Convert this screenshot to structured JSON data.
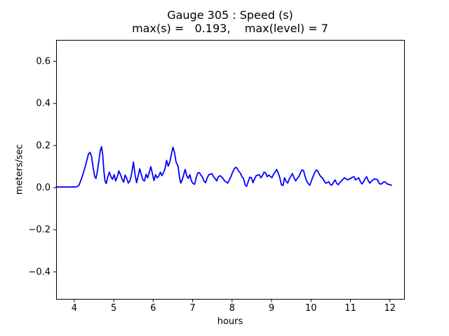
{
  "chart_data": {
    "type": "line",
    "title": "Gauge 305 : Speed (s)",
    "subtitle": "max(s) =   0.193,    max(level) = 7",
    "xlabel": "hours",
    "ylabel": "meters/sec",
    "xlim": [
      3.54,
      12.36
    ],
    "ylim": [
      -0.53,
      0.7
    ],
    "xticks": [
      4,
      5,
      6,
      7,
      8,
      9,
      10,
      11,
      12
    ],
    "yticks": [
      -0.4,
      -0.2,
      0.0,
      0.2,
      0.4,
      0.6
    ],
    "grid": false,
    "legend": null,
    "line_color": "#0000ff",
    "line_width": 1.8,
    "axis_color": "#000000",
    "background_color": "#ffffff",
    "series_name": "speed",
    "points": [
      [
        3.54,
        0.001
      ],
      [
        3.6,
        0.002
      ],
      [
        3.66,
        0.001
      ],
      [
        3.72,
        0.002
      ],
      [
        3.78,
        0.001
      ],
      [
        3.84,
        0.002
      ],
      [
        3.9,
        0.001
      ],
      [
        3.96,
        0.002
      ],
      [
        4.02,
        0.001
      ],
      [
        4.08,
        0.004
      ],
      [
        4.12,
        0.01
      ],
      [
        4.16,
        0.03
      ],
      [
        4.2,
        0.05
      ],
      [
        4.24,
        0.075
      ],
      [
        4.28,
        0.1
      ],
      [
        4.32,
        0.13
      ],
      [
        4.36,
        0.158
      ],
      [
        4.4,
        0.166
      ],
      [
        4.44,
        0.145
      ],
      [
        4.48,
        0.09
      ],
      [
        4.52,
        0.05
      ],
      [
        4.55,
        0.042
      ],
      [
        4.58,
        0.07
      ],
      [
        4.62,
        0.12
      ],
      [
        4.66,
        0.175
      ],
      [
        4.69,
        0.193
      ],
      [
        4.72,
        0.155
      ],
      [
        4.75,
        0.08
      ],
      [
        4.78,
        0.03
      ],
      [
        4.81,
        0.018
      ],
      [
        4.85,
        0.05
      ],
      [
        4.89,
        0.072
      ],
      [
        4.93,
        0.05
      ],
      [
        4.97,
        0.038
      ],
      [
        5.01,
        0.06
      ],
      [
        5.05,
        0.03
      ],
      [
        5.09,
        0.05
      ],
      [
        5.13,
        0.078
      ],
      [
        5.17,
        0.06
      ],
      [
        5.21,
        0.04
      ],
      [
        5.25,
        0.024
      ],
      [
        5.29,
        0.058
      ],
      [
        5.33,
        0.042
      ],
      [
        5.37,
        0.02
      ],
      [
        5.41,
        0.03
      ],
      [
        5.45,
        0.06
      ],
      [
        5.5,
        0.12
      ],
      [
        5.54,
        0.06
      ],
      [
        5.58,
        0.022
      ],
      [
        5.62,
        0.055
      ],
      [
        5.66,
        0.088
      ],
      [
        5.7,
        0.06
      ],
      [
        5.74,
        0.035
      ],
      [
        5.78,
        0.03
      ],
      [
        5.82,
        0.062
      ],
      [
        5.86,
        0.045
      ],
      [
        5.9,
        0.07
      ],
      [
        5.94,
        0.098
      ],
      [
        5.98,
        0.065
      ],
      [
        6.02,
        0.032
      ],
      [
        6.06,
        0.06
      ],
      [
        6.1,
        0.045
      ],
      [
        6.14,
        0.052
      ],
      [
        6.18,
        0.072
      ],
      [
        6.22,
        0.055
      ],
      [
        6.26,
        0.07
      ],
      [
        6.3,
        0.088
      ],
      [
        6.34,
        0.128
      ],
      [
        6.38,
        0.1
      ],
      [
        6.42,
        0.12
      ],
      [
        6.46,
        0.155
      ],
      [
        6.5,
        0.19
      ],
      [
        6.54,
        0.165
      ],
      [
        6.58,
        0.12
      ],
      [
        6.63,
        0.1
      ],
      [
        6.67,
        0.045
      ],
      [
        6.7,
        0.02
      ],
      [
        6.74,
        0.038
      ],
      [
        6.78,
        0.065
      ],
      [
        6.81,
        0.085
      ],
      [
        6.85,
        0.055
      ],
      [
        6.89,
        0.042
      ],
      [
        6.93,
        0.06
      ],
      [
        6.97,
        0.03
      ],
      [
        7.01,
        0.018
      ],
      [
        7.05,
        0.015
      ],
      [
        7.09,
        0.045
      ],
      [
        7.13,
        0.068
      ],
      [
        7.17,
        0.07
      ],
      [
        7.21,
        0.058
      ],
      [
        7.25,
        0.048
      ],
      [
        7.29,
        0.028
      ],
      [
        7.33,
        0.022
      ],
      [
        7.37,
        0.045
      ],
      [
        7.41,
        0.06
      ],
      [
        7.45,
        0.062
      ],
      [
        7.49,
        0.065
      ],
      [
        7.53,
        0.05
      ],
      [
        7.57,
        0.042
      ],
      [
        7.61,
        0.03
      ],
      [
        7.65,
        0.05
      ],
      [
        7.69,
        0.055
      ],
      [
        7.73,
        0.05
      ],
      [
        7.77,
        0.042
      ],
      [
        7.81,
        0.03
      ],
      [
        7.85,
        0.025
      ],
      [
        7.89,
        0.02
      ],
      [
        7.93,
        0.035
      ],
      [
        7.97,
        0.05
      ],
      [
        8.01,
        0.07
      ],
      [
        8.05,
        0.086
      ],
      [
        8.09,
        0.095
      ],
      [
        8.13,
        0.09
      ],
      [
        8.17,
        0.075
      ],
      [
        8.21,
        0.068
      ],
      [
        8.25,
        0.05
      ],
      [
        8.29,
        0.042
      ],
      [
        8.33,
        0.012
      ],
      [
        8.37,
        0.005
      ],
      [
        8.41,
        0.028
      ],
      [
        8.45,
        0.048
      ],
      [
        8.49,
        0.045
      ],
      [
        8.53,
        0.022
      ],
      [
        8.57,
        0.04
      ],
      [
        8.61,
        0.055
      ],
      [
        8.65,
        0.058
      ],
      [
        8.69,
        0.06
      ],
      [
        8.73,
        0.045
      ],
      [
        8.77,
        0.055
      ],
      [
        8.81,
        0.072
      ],
      [
        8.85,
        0.068
      ],
      [
        8.89,
        0.05
      ],
      [
        8.93,
        0.058
      ],
      [
        8.97,
        0.052
      ],
      [
        9.01,
        0.045
      ],
      [
        9.05,
        0.062
      ],
      [
        9.09,
        0.072
      ],
      [
        9.13,
        0.085
      ],
      [
        9.17,
        0.068
      ],
      [
        9.21,
        0.045
      ],
      [
        9.25,
        0.012
      ],
      [
        9.29,
        0.008
      ],
      [
        9.33,
        0.045
      ],
      [
        9.37,
        0.028
      ],
      [
        9.41,
        0.02
      ],
      [
        9.45,
        0.04
      ],
      [
        9.49,
        0.052
      ],
      [
        9.53,
        0.065
      ],
      [
        9.57,
        0.045
      ],
      [
        9.61,
        0.03
      ],
      [
        9.65,
        0.042
      ],
      [
        9.69,
        0.05
      ],
      [
        9.73,
        0.068
      ],
      [
        9.77,
        0.082
      ],
      [
        9.81,
        0.08
      ],
      [
        9.85,
        0.052
      ],
      [
        9.89,
        0.03
      ],
      [
        9.93,
        0.018
      ],
      [
        9.97,
        0.01
      ],
      [
        10.01,
        0.03
      ],
      [
        10.05,
        0.05
      ],
      [
        10.09,
        0.068
      ],
      [
        10.13,
        0.082
      ],
      [
        10.17,
        0.078
      ],
      [
        10.21,
        0.062
      ],
      [
        10.25,
        0.05
      ],
      [
        10.29,
        0.045
      ],
      [
        10.33,
        0.032
      ],
      [
        10.37,
        0.02
      ],
      [
        10.41,
        0.022
      ],
      [
        10.45,
        0.026
      ],
      [
        10.49,
        0.014
      ],
      [
        10.53,
        0.01
      ],
      [
        10.57,
        0.024
      ],
      [
        10.61,
        0.035
      ],
      [
        10.65,
        0.02
      ],
      [
        10.69,
        0.012
      ],
      [
        10.73,
        0.022
      ],
      [
        10.77,
        0.03
      ],
      [
        10.81,
        0.038
      ],
      [
        10.85,
        0.045
      ],
      [
        10.89,
        0.04
      ],
      [
        10.93,
        0.035
      ],
      [
        10.97,
        0.04
      ],
      [
        11.01,
        0.042
      ],
      [
        11.05,
        0.048
      ],
      [
        11.09,
        0.05
      ],
      [
        11.13,
        0.035
      ],
      [
        11.17,
        0.04
      ],
      [
        11.21,
        0.045
      ],
      [
        11.25,
        0.028
      ],
      [
        11.29,
        0.016
      ],
      [
        11.33,
        0.025
      ],
      [
        11.37,
        0.04
      ],
      [
        11.41,
        0.05
      ],
      [
        11.45,
        0.032
      ],
      [
        11.49,
        0.02
      ],
      [
        11.53,
        0.028
      ],
      [
        11.57,
        0.035
      ],
      [
        11.61,
        0.04
      ],
      [
        11.65,
        0.038
      ],
      [
        11.69,
        0.035
      ],
      [
        11.73,
        0.018
      ],
      [
        11.77,
        0.015
      ],
      [
        11.81,
        0.02
      ],
      [
        11.85,
        0.026
      ],
      [
        11.89,
        0.024
      ],
      [
        11.93,
        0.016
      ],
      [
        11.97,
        0.014
      ],
      [
        12.01,
        0.012
      ],
      [
        12.04,
        0.01
      ]
    ]
  }
}
